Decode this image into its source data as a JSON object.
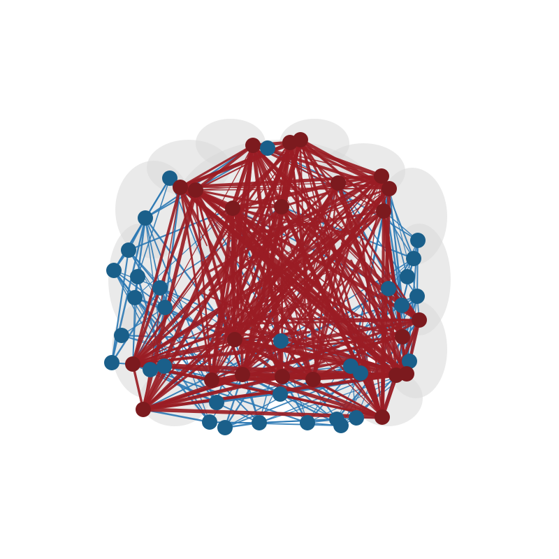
{
  "colors": {
    "background": "#ffffff",
    "brain_shell": "#d8d8d8",
    "blue_edge": "#2a78b4",
    "blue_node": "#1a5f8a",
    "red_edge": "#9a1d24",
    "red_node": "#7c1a1e"
  },
  "view": "brain-connectome-front-view"
}
